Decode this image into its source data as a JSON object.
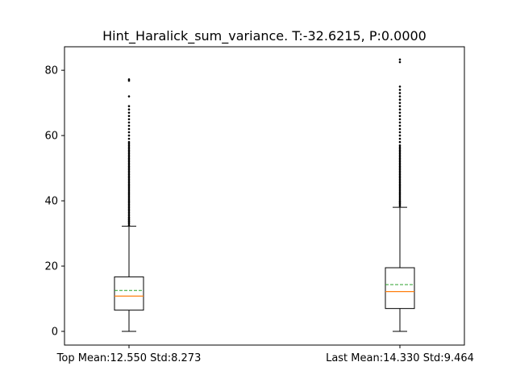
{
  "chart_data": {
    "type": "box",
    "title": "Hint_Haralick_sum_variance. T:-32.6215, P:0.0000",
    "xlabel": "",
    "ylabel": "",
    "ylim": [
      -4.2,
      87.2
    ],
    "yticks": [
      0,
      20,
      40,
      60,
      80
    ],
    "grid": false,
    "colors": {
      "median": "#ff7f0e",
      "mean": "#2ca02c",
      "box": "#000000"
    },
    "categories": [
      "Top Mean:12.550 Std:8.273",
      "Last Mean:14.330 Std:9.464"
    ],
    "boxes": [
      {
        "label": "Top Mean:12.550 Std:8.273",
        "whisker_low": 0.0,
        "q1": 6.5,
        "median": 10.8,
        "mean": 12.55,
        "q3": 16.7,
        "whisker_high": 32.2,
        "outliers": [
          32.5,
          33.0,
          33.4,
          33.8,
          34.2,
          34.6,
          35.0,
          35.5,
          36.0,
          36.5,
          37.0,
          37.5,
          38.0,
          38.5,
          39.0,
          39.5,
          40.0,
          40.5,
          41.0,
          41.5,
          42.0,
          42.5,
          43.0,
          43.5,
          44.0,
          44.5,
          45.0,
          45.5,
          46.0,
          46.5,
          47.0,
          47.5,
          48.0,
          48.5,
          49.0,
          49.5,
          50.0,
          50.5,
          51.0,
          51.5,
          52.0,
          52.5,
          53.0,
          53.5,
          54.0,
          54.5,
          55.0,
          55.5,
          56.0,
          56.5,
          57.0,
          57.5,
          58.0,
          59.0,
          60.0,
          61.0,
          62.0,
          63.0,
          64.0,
          65.0,
          66.0,
          67.0,
          68.0,
          69.0,
          72.0,
          76.8,
          77.2
        ]
      },
      {
        "label": "Last Mean:14.330 Std:9.464",
        "whisker_low": 0.0,
        "q1": 7.0,
        "median": 12.2,
        "mean": 14.33,
        "q3": 19.5,
        "whisker_high": 38.0,
        "outliers": [
          38.4,
          38.8,
          39.2,
          39.6,
          40.0,
          40.5,
          41.0,
          41.5,
          42.0,
          42.5,
          43.0,
          43.5,
          44.0,
          44.5,
          45.0,
          45.5,
          46.0,
          46.5,
          47.0,
          47.5,
          48.0,
          48.5,
          49.0,
          49.5,
          50.0,
          50.5,
          51.0,
          51.5,
          52.0,
          52.5,
          53.0,
          53.5,
          54.0,
          54.5,
          55.0,
          55.5,
          56.0,
          56.5,
          57.0,
          58.0,
          59.0,
          60.0,
          61.0,
          62.0,
          63.0,
          64.0,
          65.0,
          66.0,
          67.0,
          68.0,
          69.0,
          70.0,
          71.0,
          72.0,
          73.0,
          74.0,
          75.0,
          82.5,
          83.3
        ]
      }
    ]
  }
}
